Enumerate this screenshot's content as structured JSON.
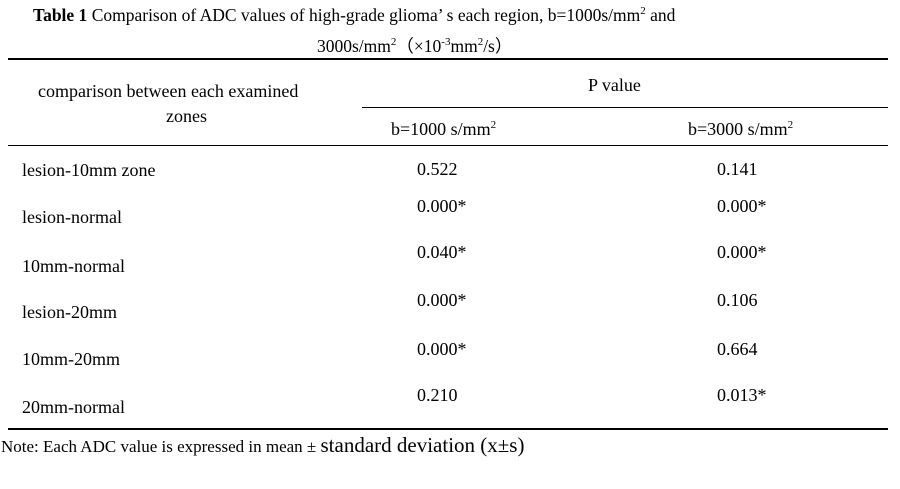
{
  "caption": {
    "label": "Table 1",
    "line1_text": "Comparison of ADC values of high-grade glioma’ s each region, b=1000s/mm",
    "line1_sup": "2",
    "line1_end": " and",
    "line2_a": "3000s/mm",
    "line2_sup1": "2",
    "line2_b": "（×10",
    "line2_sup2": "-3",
    "line2_c": "mm",
    "line2_sup3": "2",
    "line2_d": "/s）"
  },
  "header": {
    "col1_line1": "comparison between each examined",
    "col1_line2": "zones",
    "group": "P value",
    "b1000": "b=1000 s/mm",
    "b1000_sup": "2",
    "b3000": "b=3000 s/mm",
    "b3000_sup": "2"
  },
  "rows": [
    {
      "comparison": "lesion-10mm zone",
      "p1000": "0.522",
      "p3000": "0.141"
    },
    {
      "comparison": "lesion-normal",
      "p1000": "0.000*",
      "p3000": "0.000*"
    },
    {
      "comparison": "10mm-normal",
      "p1000": "0.040*",
      "p3000": "0.000*"
    },
    {
      "comparison": "lesion-20mm",
      "p1000": "0.000*",
      "p3000": "0.106"
    },
    {
      "comparison": "10mm-20mm",
      "p1000": "0.000*",
      "p3000": "0.664"
    },
    {
      "comparison": "20mm-normal",
      "p1000": "0.210",
      "p3000": "0.013*"
    }
  ],
  "note": {
    "prefix": "Note: Each ADC value is expressed in mean ± ",
    "suffix": "standard deviation (x±s)"
  }
}
